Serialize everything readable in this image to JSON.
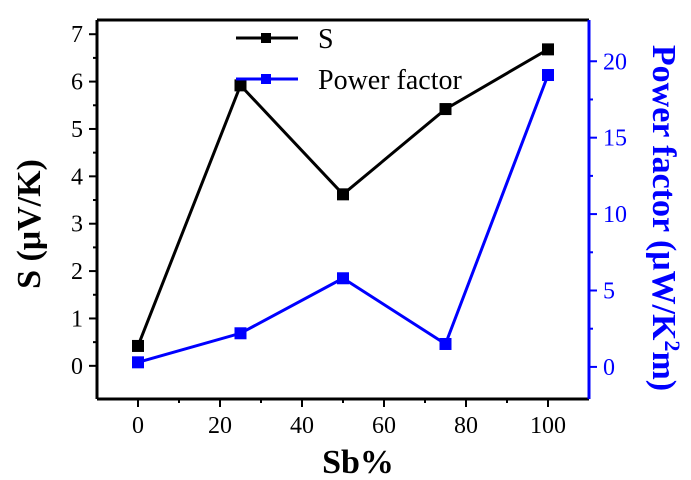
{
  "chart_data": {
    "type": "line",
    "x": [
      0,
      25,
      50,
      75,
      100
    ],
    "xlabel": "Sb%",
    "xlim": [
      -10,
      110
    ],
    "xticks": [
      0,
      20,
      40,
      60,
      80,
      100
    ],
    "y_left": {
      "label": "S (μV/K)",
      "lim": [
        -0.7,
        7.3
      ],
      "ticks": [
        0,
        1,
        2,
        3,
        4,
        5,
        6,
        7
      ],
      "color": "#000000"
    },
    "y_right": {
      "label_main": "Power factor (μW/K",
      "label_sup": "2",
      "label_end": "m)",
      "lim": [
        -2.1,
        22.7
      ],
      "ticks": [
        0,
        5,
        10,
        15,
        20
      ],
      "color": "#0000ff"
    },
    "series": [
      {
        "name": "S",
        "axis": "left",
        "color": "#000000",
        "values": [
          0.42,
          5.92,
          3.62,
          5.42,
          6.68
        ]
      },
      {
        "name": "Power factor",
        "axis": "right",
        "color": "#0000ff",
        "values": [
          0.3,
          2.2,
          5.8,
          1.5,
          19.1
        ]
      }
    ],
    "legend_position": "top-center"
  }
}
